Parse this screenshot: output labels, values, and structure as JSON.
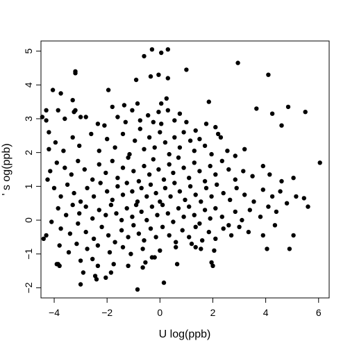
{
  "chart_data": {
    "type": "scatter",
    "title": "",
    "xlabel": "U log(ppb)",
    "ylabel": "' s  og(ppb)",
    "xlim": [
      -4.5,
      6.4
    ],
    "ylim": [
      -2.3,
      5.3
    ],
    "xticks": [
      -4,
      -2,
      0,
      2,
      4,
      6
    ],
    "yticks": [
      -2,
      -1,
      0,
      1,
      2,
      3,
      4,
      5
    ],
    "xtick_labels": [
      "−4",
      "−2",
      "0",
      "2",
      "4",
      "6"
    ],
    "ytick_labels": [
      "−2",
      "−1",
      "0",
      "1",
      "2",
      "3",
      "4",
      "5"
    ],
    "grid": false,
    "legend": "none",
    "marker_color": "#000000",
    "points": [
      [
        -0.3,
        5.05
      ],
      [
        0.3,
        5.05
      ],
      [
        -0.6,
        4.85
      ],
      [
        0.05,
        4.95
      ],
      [
        2.95,
        4.65
      ],
      [
        4.1,
        4.3
      ],
      [
        1.0,
        4.45
      ],
      [
        -3.2,
        4.4
      ],
      [
        -3.2,
        4.35
      ],
      [
        -0.9,
        4.15
      ],
      [
        -0.35,
        4.25
      ],
      [
        -0.05,
        4.3
      ],
      [
        0.3,
        4.2
      ],
      [
        -3.75,
        3.75
      ],
      [
        -1.95,
        3.85
      ],
      [
        -3.3,
        3.55
      ],
      [
        0.25,
        3.6
      ],
      [
        0.05,
        3.45
      ],
      [
        -4.05,
        3.85
      ],
      [
        1.85,
        3.5
      ],
      [
        4.25,
        3.15
      ],
      [
        4.85,
        3.35
      ],
      [
        5.5,
        3.2
      ],
      [
        4.6,
        2.8
      ],
      [
        3.65,
        3.3
      ],
      [
        -4.3,
        3.25
      ],
      [
        -4.45,
        3.05
      ],
      [
        -4.3,
        2.95
      ],
      [
        -4.2,
        2.6
      ],
      [
        -3.85,
        3.25
      ],
      [
        -3.6,
        3.0
      ],
      [
        -3.25,
        3.2
      ],
      [
        -3.0,
        3.05
      ],
      [
        -3.2,
        3.25
      ],
      [
        -2.8,
        3.05
      ],
      [
        -2.35,
        2.85
      ],
      [
        -2.1,
        2.8
      ],
      [
        -1.8,
        3.35
      ],
      [
        -1.6,
        3.05
      ],
      [
        -1.35,
        3.4
      ],
      [
        -1.3,
        2.9
      ],
      [
        -1.05,
        3.25
      ],
      [
        -0.85,
        3.45
      ],
      [
        -0.75,
        2.95
      ],
      [
        -0.45,
        3.1
      ],
      [
        -0.25,
        2.9
      ],
      [
        -0.05,
        3.2
      ],
      [
        0.05,
        2.85
      ],
      [
        0.3,
        3.25
      ],
      [
        0.55,
        2.95
      ],
      [
        0.75,
        3.15
      ],
      [
        1.0,
        2.9
      ],
      [
        1.35,
        2.65
      ],
      [
        1.75,
        2.85
      ],
      [
        2.1,
        2.75
      ],
      [
        2.2,
        2.55
      ],
      [
        -4.2,
        2.1
      ],
      [
        -3.95,
        2.3
      ],
      [
        -3.65,
        2.05
      ],
      [
        -3.3,
        2.45
      ],
      [
        -3.05,
        2.2
      ],
      [
        -2.6,
        2.55
      ],
      [
        -2.3,
        2.05
      ],
      [
        -2.0,
        2.4
      ],
      [
        -1.7,
        2.15
      ],
      [
        -1.4,
        2.55
      ],
      [
        -1.15,
        1.95
      ],
      [
        -0.95,
        2.35
      ],
      [
        -0.75,
        2.7
      ],
      [
        -0.6,
        2.1
      ],
      [
        -0.4,
        2.45
      ],
      [
        -0.2,
        2.15
      ],
      [
        0.0,
        2.6
      ],
      [
        0.2,
        2.3
      ],
      [
        0.35,
        1.95
      ],
      [
        0.55,
        2.45
      ],
      [
        0.75,
        2.15
      ],
      [
        0.9,
        2.6
      ],
      [
        1.15,
        2.35
      ],
      [
        1.3,
        2.05
      ],
      [
        1.5,
        2.4
      ],
      [
        1.7,
        2.2
      ],
      [
        1.95,
        1.95
      ],
      [
        2.3,
        2.45
      ],
      [
        2.55,
        2.05
      ],
      [
        2.85,
        1.9
      ],
      [
        3.2,
        2.1
      ],
      [
        -4.15,
        1.45
      ],
      [
        -3.9,
        1.7
      ],
      [
        -3.6,
        1.55
      ],
      [
        -3.35,
        1.35
      ],
      [
        -3.1,
        1.75
      ],
      [
        -2.85,
        1.5
      ],
      [
        -2.55,
        1.2
      ],
      [
        -2.3,
        1.65
      ],
      [
        -2.05,
        1.4
      ],
      [
        -1.8,
        1.75
      ],
      [
        -1.6,
        1.25
      ],
      [
        -1.4,
        1.55
      ],
      [
        -1.2,
        1.85
      ],
      [
        -1.0,
        1.45
      ],
      [
        -0.8,
        1.15
      ],
      [
        -0.6,
        1.6
      ],
      [
        -0.4,
        1.35
      ],
      [
        -0.25,
        1.8
      ],
      [
        -0.05,
        1.5
      ],
      [
        0.15,
        1.2
      ],
      [
        0.35,
        1.65
      ],
      [
        0.5,
        1.4
      ],
      [
        0.7,
        1.85
      ],
      [
        0.9,
        1.55
      ],
      [
        1.1,
        1.25
      ],
      [
        1.3,
        1.7
      ],
      [
        1.5,
        1.45
      ],
      [
        1.7,
        1.15
      ],
      [
        1.9,
        1.6
      ],
      [
        2.1,
        1.35
      ],
      [
        2.35,
        1.75
      ],
      [
        2.6,
        1.5
      ],
      [
        2.85,
        1.2
      ],
      [
        3.15,
        1.45
      ],
      [
        3.5,
        1.3
      ],
      [
        3.9,
        1.6
      ],
      [
        4.15,
        1.35
      ],
      [
        4.6,
        1.15
      ],
      [
        5.05,
        1.25
      ],
      [
        6.05,
        1.7
      ],
      [
        -4.25,
        1.2
      ],
      [
        -4.0,
        0.95
      ],
      [
        -3.75,
        0.7
      ],
      [
        -3.5,
        1.05
      ],
      [
        -3.25,
        0.8
      ],
      [
        -3.0,
        0.55
      ],
      [
        -2.75,
        0.95
      ],
      [
        -2.5,
        0.7
      ],
      [
        -2.25,
        1.1
      ],
      [
        -2.0,
        0.85
      ],
      [
        -1.8,
        0.6
      ],
      [
        -1.6,
        1.0
      ],
      [
        -1.4,
        0.75
      ],
      [
        -1.25,
        1.1
      ],
      [
        -1.05,
        0.85
      ],
      [
        -0.85,
        0.55
      ],
      [
        -0.7,
        0.95
      ],
      [
        -0.5,
        0.7
      ],
      [
        -0.35,
        1.05
      ],
      [
        -0.15,
        0.8
      ],
      [
        0.0,
        0.55
      ],
      [
        0.2,
        0.95
      ],
      [
        0.4,
        0.7
      ],
      [
        0.55,
        1.1
      ],
      [
        0.75,
        0.85
      ],
      [
        0.95,
        0.6
      ],
      [
        1.15,
        1.0
      ],
      [
        1.35,
        0.75
      ],
      [
        1.55,
        0.55
      ],
      [
        1.75,
        0.95
      ],
      [
        1.95,
        0.7
      ],
      [
        2.15,
        1.05
      ],
      [
        2.4,
        0.8
      ],
      [
        2.65,
        0.6
      ],
      [
        2.9,
        0.95
      ],
      [
        3.2,
        0.75
      ],
      [
        3.55,
        0.55
      ],
      [
        3.9,
        0.9
      ],
      [
        4.25,
        0.7
      ],
      [
        4.55,
        0.85
      ],
      [
        5.15,
        0.7
      ],
      [
        5.45,
        0.65
      ],
      [
        5.6,
        0.4
      ],
      [
        4.8,
        0.5
      ],
      [
        -3.85,
        0.35
      ],
      [
        -3.55,
        0.15
      ],
      [
        -3.3,
        0.45
      ],
      [
        -3.05,
        0.2
      ],
      [
        -2.8,
        0.4
      ],
      [
        -2.55,
        0.05
      ],
      [
        -2.3,
        0.3
      ],
      [
        -2.05,
        0.15
      ],
      [
        -1.85,
        0.45
      ],
      [
        -1.65,
        0.2
      ],
      [
        -1.45,
        0.0
      ],
      [
        -1.25,
        0.35
      ],
      [
        -1.05,
        0.1
      ],
      [
        -0.9,
        0.45
      ],
      [
        -0.7,
        0.25
      ],
      [
        -0.5,
        0.0
      ],
      [
        -0.3,
        0.4
      ],
      [
        -0.1,
        0.15
      ],
      [
        0.1,
        0.45
      ],
      [
        0.3,
        0.2
      ],
      [
        0.5,
        -0.05
      ],
      [
        0.7,
        0.35
      ],
      [
        0.9,
        0.1
      ],
      [
        1.1,
        0.4
      ],
      [
        1.3,
        0.15
      ],
      [
        1.5,
        -0.1
      ],
      [
        1.7,
        0.3
      ],
      [
        1.9,
        0.05
      ],
      [
        2.1,
        0.35
      ],
      [
        2.35,
        0.1
      ],
      [
        2.6,
        -0.15
      ],
      [
        2.85,
        0.25
      ],
      [
        3.1,
        0.0
      ],
      [
        3.4,
        0.3
      ],
      [
        3.8,
        0.1
      ],
      [
        4.1,
        0.4
      ],
      [
        4.4,
        0.25
      ],
      [
        -4.1,
        -0.05
      ],
      [
        -3.75,
        -0.25
      ],
      [
        -3.4,
        -0.4
      ],
      [
        -3.1,
        -0.1
      ],
      [
        -2.8,
        -0.35
      ],
      [
        -2.5,
        -0.55
      ],
      [
        -2.2,
        -0.2
      ],
      [
        -1.95,
        -0.45
      ],
      [
        -1.7,
        -0.65
      ],
      [
        -1.45,
        -0.3
      ],
      [
        -1.2,
        -0.5
      ],
      [
        -1.0,
        -0.15
      ],
      [
        -0.8,
        -0.4
      ],
      [
        -0.6,
        -0.6
      ],
      [
        -0.35,
        -0.25
      ],
      [
        -0.15,
        -0.5
      ],
      [
        0.1,
        -0.2
      ],
      [
        0.35,
        -0.45
      ],
      [
        0.6,
        -0.65
      ],
      [
        0.85,
        -0.3
      ],
      [
        1.1,
        -0.5
      ],
      [
        1.35,
        -0.2
      ],
      [
        1.6,
        -0.6
      ],
      [
        1.85,
        -0.35
      ],
      [
        2.1,
        -0.55
      ],
      [
        2.4,
        -0.25
      ],
      [
        2.7,
        -0.45
      ],
      [
        3.0,
        -0.2
      ],
      [
        3.35,
        -0.35
      ],
      [
        3.9,
        -0.45
      ],
      [
        4.35,
        -0.15
      ],
      [
        -4.4,
        -0.55
      ],
      [
        -4.3,
        -0.45
      ],
      [
        -3.8,
        -0.75
      ],
      [
        -3.45,
        -0.95
      ],
      [
        -3.15,
        -0.7
      ],
      [
        -2.75,
        -0.85
      ],
      [
        -2.35,
        -0.75
      ],
      [
        -1.9,
        -0.95
      ],
      [
        -1.4,
        -0.8
      ],
      [
        -1.1,
        -1.0
      ],
      [
        -0.65,
        -0.85
      ],
      [
        -0.3,
        -1.1
      ],
      [
        0.0,
        -0.9
      ],
      [
        0.6,
        -0.8
      ],
      [
        1.2,
        -0.7
      ],
      [
        1.55,
        -0.85
      ],
      [
        2.05,
        -0.9
      ],
      [
        4.05,
        -0.85
      ],
      [
        4.9,
        -0.85
      ],
      [
        5.05,
        -0.45
      ],
      [
        -3.85,
        -1.3
      ],
      [
        -3.8,
        -1.35
      ],
      [
        -3.9,
        -1.3
      ],
      [
        -3.0,
        -1.2
      ],
      [
        -2.55,
        -1.15
      ],
      [
        -2.35,
        -1.35
      ],
      [
        -1.75,
        -1.3
      ],
      [
        -1.2,
        -1.35
      ],
      [
        -0.65,
        -1.4
      ],
      [
        -0.55,
        -1.25
      ],
      [
        -0.2,
        -1.1
      ],
      [
        0.65,
        -1.3
      ],
      [
        1.35,
        -0.8
      ],
      [
        1.95,
        -1.25
      ],
      [
        2.0,
        -1.35
      ],
      [
        -2.9,
        -1.55
      ],
      [
        -2.45,
        -1.65
      ],
      [
        -2.4,
        -1.75
      ],
      [
        -1.85,
        -1.55
      ],
      [
        -2.05,
        -1.7
      ],
      [
        -3.0,
        -1.9
      ],
      [
        -0.85,
        -2.05
      ],
      [
        0.15,
        -1.85
      ]
    ]
  }
}
